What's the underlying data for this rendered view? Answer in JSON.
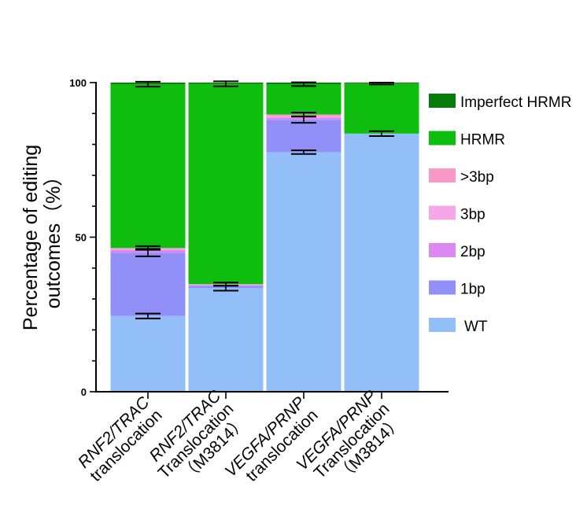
{
  "chart_data": {
    "type": "bar",
    "stacked": true,
    "title": "",
    "xlabel": "",
    "ylabel_lines": [
      "Percentage of editing",
      "outcomes（%）"
    ],
    "ylim": [
      0,
      100
    ],
    "yticks": [
      "0",
      "50",
      "100"
    ],
    "categories": [
      {
        "lines": [
          {
            "italic": "RNF2/TRAC",
            "normal": ""
          },
          {
            "italic": "",
            "normal": "translocation"
          }
        ]
      },
      {
        "lines": [
          {
            "italic": "RNF2/TRAC",
            "normal": ""
          },
          {
            "italic": "",
            "normal": "Translocation"
          },
          {
            "italic": "",
            "normal": "（M3814）"
          }
        ]
      },
      {
        "lines": [
          {
            "italic": "VEGFA/PRNP",
            "normal": ""
          },
          {
            "italic": "",
            "normal": "translocation"
          }
        ]
      },
      {
        "lines": [
          {
            "italic": "VEGFA/PRNP",
            "normal": ""
          },
          {
            "italic": "",
            "normal": "Translocation"
          },
          {
            "italic": "",
            "normal": "（M3814）"
          }
        ]
      }
    ],
    "series": [
      {
        "name": "WT",
        "color": "#92bff8",
        "values": [
          24.5,
          33.5,
          77.5,
          83.5
        ],
        "errors": [
          0.8,
          0.8,
          0.6,
          0.8
        ]
      },
      {
        "name": "1bp",
        "color": "#9090f8",
        "values": [
          20.5,
          0.8,
          10.5,
          0
        ],
        "errors": [
          1.2,
          0,
          1.0,
          0
        ]
      },
      {
        "name": "2bp",
        "color": "#dd88f2",
        "values": [
          0.8,
          0.2,
          0.7,
          0
        ],
        "errors": [
          0,
          0,
          0,
          0
        ]
      },
      {
        "name": "3bp",
        "color": "#f4a8e8",
        "values": [
          0.3,
          0.1,
          0.4,
          0
        ],
        "errors": [
          0,
          0,
          0,
          0
        ]
      },
      {
        "name": ">3bp",
        "color": "#f79ac8",
        "values": [
          0.4,
          0.2,
          0.6,
          0
        ],
        "errors": [
          0.6,
          0.5,
          0.6,
          0
        ]
      },
      {
        "name": "HRMR",
        "color": "#0ebd0e",
        "values": [
          53.0,
          64.8,
          9.8,
          16.2
        ],
        "errors": [
          0.8,
          0.8,
          0.6,
          0.3
        ]
      },
      {
        "name": "Imperfect HRMR",
        "color": "#087c08",
        "values": [
          0.5,
          0.4,
          0.5,
          0.3
        ],
        "errors": [
          0,
          0,
          0,
          0
        ]
      }
    ],
    "legend_order": [
      "Imperfect HRMR",
      "HRMR",
      ">3bp",
      "3bp",
      "2bp",
      "1bp",
      "WT"
    ],
    "legend_labels": [
      "Imperfect HRMR",
      "HRMR",
      ">3bp",
      "3bp",
      "2bp",
      "1bp",
      "WT"
    ],
    "legend_position": "right"
  }
}
